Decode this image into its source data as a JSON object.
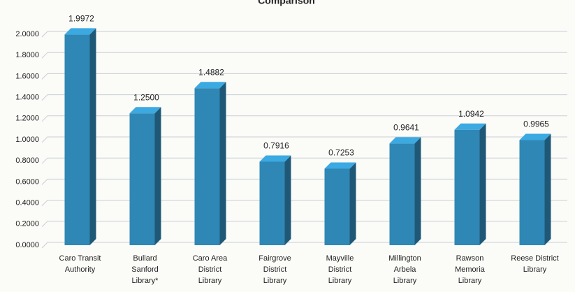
{
  "chart_data": {
    "type": "bar3d",
    "title": "Comparison",
    "categories": [
      "Caro Transit\nAuthority",
      "Bullard\nSanford\nLibrary*",
      "Caro Area\nDistrict\nLibrary",
      "Fairgrove\nDistrict\nLibrary",
      "Mayville\nDistrict\nLibrary",
      "Millington\nArbela\nLibrary",
      "Rawson\nMemoria\nLibrary",
      "Reese District\nLibrary"
    ],
    "values": [
      1.9972,
      1.25,
      1.4882,
      0.7916,
      0.7253,
      0.9641,
      1.0942,
      0.9965
    ],
    "value_labels": [
      "1.9972",
      "1.2500",
      "1.4882",
      "0.7916",
      "0.7253",
      "0.9641",
      "1.0942",
      "0.9965"
    ],
    "color": "#2f87b5",
    "ylim": [
      0,
      2.0
    ],
    "yticks": [
      {
        "value": 0,
        "label": "0.0000"
      },
      {
        "value": 0.2,
        "label": "0.2000"
      },
      {
        "value": 0.4,
        "label": "0.4000"
      },
      {
        "value": 0.6,
        "label": "0.6000"
      },
      {
        "value": 0.8,
        "label": "0.8000"
      },
      {
        "value": 1.0,
        "label": "1.0000"
      },
      {
        "value": 1.2,
        "label": "1.2000"
      },
      {
        "value": 1.4,
        "label": "1.4000"
      },
      {
        "value": 1.6,
        "label": "1.6000"
      },
      {
        "value": 1.8,
        "label": "1.8000"
      },
      {
        "value": 2.0,
        "label": "2.0000"
      }
    ],
    "grid": true
  }
}
